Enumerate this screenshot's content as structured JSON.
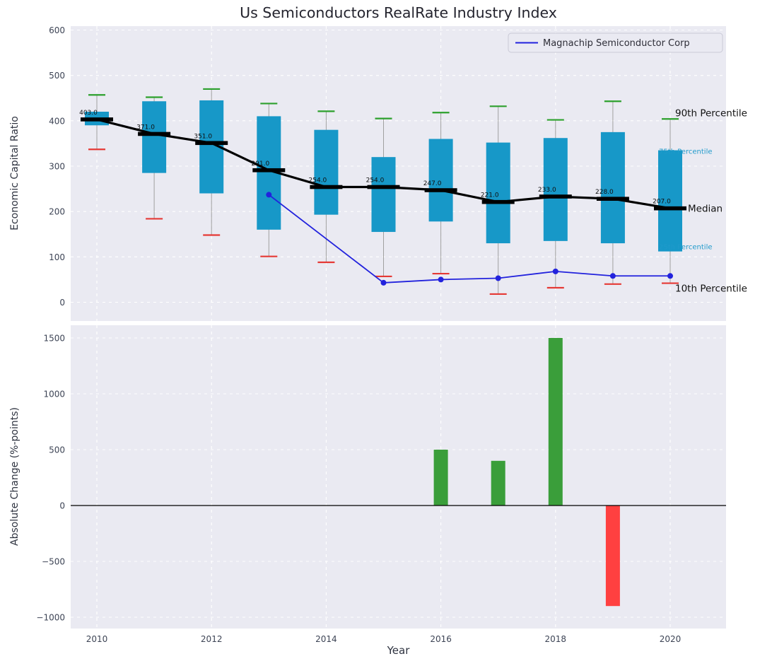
{
  "title": "Us Semiconductors RealRate Industry Index",
  "axes": {
    "top_ylabel": "Economic Capital Ratio",
    "bottom_ylabel": "Absolute Change (%-points)",
    "xlabel": "Year"
  },
  "legend": {
    "series_label": "Magnachip Semiconductor Corp"
  },
  "colors": {
    "box_fill": "#1798c8",
    "whisker": "#a0a0a0",
    "cap_top": "#2ca02c",
    "cap_bottom": "#e53935",
    "median": "#000000",
    "company_line": "#2222dd",
    "bar_positive": "#3a9e3a",
    "bar_negative": "#ff4040",
    "panel_bg": "#eaeaf2",
    "grid": "#ffffff",
    "annotation_cyan": "#1f9acb",
    "annotation_black": "#111111",
    "tick_text": "#3d4455",
    "title_text": "#24242e",
    "zero_line": "#000000"
  },
  "chart_data": [
    {
      "type": "box",
      "title": "Us Semiconductors RealRate Industry Index",
      "ylabel": "Economic Capital Ratio",
      "ylim": [
        -41,
        608
      ],
      "yticks": [
        0,
        100,
        200,
        300,
        400,
        500,
        600
      ],
      "xticks": [
        2010,
        2012,
        2014,
        2016,
        2018,
        2020
      ],
      "xlim": [
        2009.5,
        2021
      ],
      "grid": true,
      "years": [
        2010,
        2011,
        2012,
        2013,
        2014,
        2015,
        2016,
        2017,
        2018,
        2019,
        2020
      ],
      "p90": [
        457,
        452,
        470,
        438,
        421,
        405,
        418,
        432,
        402,
        443,
        404
      ],
      "p75": [
        420,
        443,
        445,
        410,
        380,
        320,
        360,
        352,
        362,
        375,
        335
      ],
      "median": [
        403,
        371,
        351,
        291,
        254,
        254,
        247,
        221,
        233,
        228,
        207
      ],
      "p25": [
        390,
        285,
        240,
        160,
        193,
        155,
        178,
        130,
        135,
        130,
        112
      ],
      "p10": [
        337,
        184,
        148,
        101,
        88,
        57,
        63,
        18,
        32,
        40,
        42
      ],
      "median_labels": [
        "403.0",
        "371.0",
        "351.0",
        "291.0",
        "254.0",
        "254.0",
        "247.0",
        "221.0",
        "233.0",
        "228.0",
        "207.0"
      ],
      "company_series": {
        "name": "Magnachip Semiconductor Corp",
        "points": [
          {
            "year": 2013,
            "value": 237
          },
          {
            "year": 2015,
            "value": 43
          },
          {
            "year": 2016,
            "value": 50
          },
          {
            "year": 2017,
            "value": 53
          },
          {
            "year": 2018,
            "value": 68
          },
          {
            "year": 2019,
            "value": 58
          },
          {
            "year": 2020,
            "value": 58
          }
        ]
      },
      "annotations": [
        {
          "label": "90th Percentile",
          "anchor": "p90",
          "emphasis": "major",
          "dy": -4
        },
        {
          "label": "75th Percentile",
          "anchor": "p75",
          "emphasis": "minor",
          "dy": 5
        },
        {
          "label": "Median",
          "anchor": "median",
          "emphasis": "major",
          "dy": 5
        },
        {
          "label": "25th Percentile",
          "anchor": "p25",
          "emphasis": "minor",
          "dy": -3
        },
        {
          "label": "10th Percentile",
          "anchor": "p10",
          "emphasis": "major",
          "dy": 12
        }
      ]
    },
    {
      "type": "bar",
      "ylabel": "Absolute Change (%-points)",
      "ylim": [
        -1100,
        1615
      ],
      "yticks": [
        -1000,
        -500,
        0,
        500,
        1000,
        1500
      ],
      "xticks": [
        2010,
        2012,
        2014,
        2016,
        2018,
        2020
      ],
      "xlabel": "Year",
      "grid": true,
      "bars": [
        {
          "year": 2016,
          "value": 500
        },
        {
          "year": 2017,
          "value": 400
        },
        {
          "year": 2018,
          "value": 1500
        },
        {
          "year": 2019,
          "value": -900
        }
      ]
    }
  ]
}
